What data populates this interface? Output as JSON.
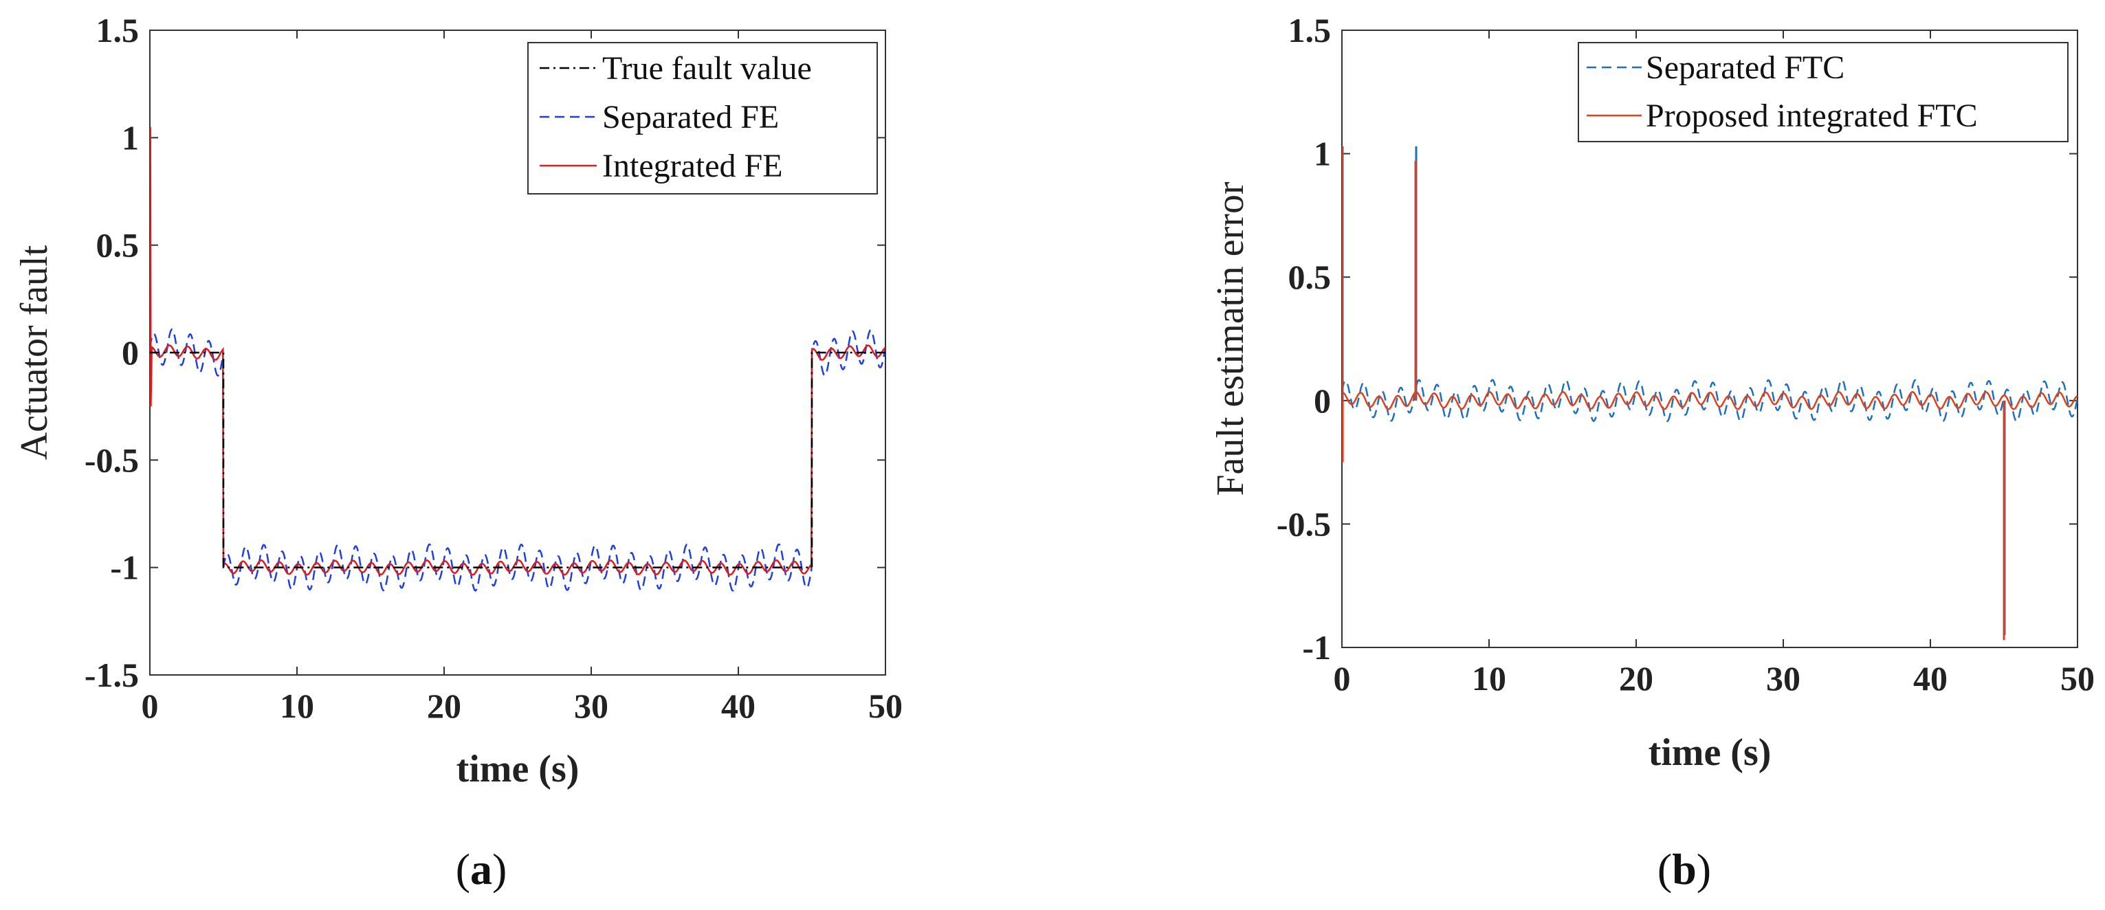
{
  "chart_data": [
    {
      "panel": "a",
      "type": "line",
      "xlabel": "time (s)",
      "ylabel": "Actuator fault",
      "xlim": [
        0,
        50
      ],
      "ylim": [
        -1.5,
        1.5
      ],
      "xticks": [
        0,
        10,
        20,
        30,
        40,
        50
      ],
      "yticks": [
        -1.5,
        -1,
        -0.5,
        0,
        0.5,
        1,
        1.5
      ],
      "xtick_labels": [
        "0",
        "10",
        "20",
        "30",
        "40",
        "50"
      ],
      "ytick_labels": [
        "-1.5",
        "-1",
        "-0.5",
        "0",
        "0.5",
        "1",
        "1.5"
      ],
      "legend_position": "top-right",
      "series": [
        {
          "name": "True fault value",
          "color": "#000000",
          "style": "dashdot",
          "x": [
            0,
            5,
            5,
            45,
            45,
            50
          ],
          "y": [
            0,
            0,
            -1,
            -1,
            0,
            0
          ]
        },
        {
          "name": "Separated FE",
          "color": "#1f3fe0",
          "style": "dashed",
          "description": "true fault plus oscillation of amplitude ~0.08, initial spike to 1.05 at t=0",
          "spike": {
            "x": 0,
            "y": 1.05
          },
          "oscillation_amplitude": 0.08
        },
        {
          "name": "Integrated FE",
          "color": "#e01b1b",
          "style": "solid",
          "description": "true fault plus oscillation of amplitude ~0.025, initial spike to 1.05 and -0.25 at t=0",
          "spike": {
            "x": 0,
            "y": 1.05,
            "y_min": -0.25
          },
          "oscillation_amplitude": 0.025
        }
      ]
    },
    {
      "panel": "b",
      "type": "line",
      "xlabel": "time (s)",
      "ylabel": "Fault estimatin error",
      "xlim": [
        0,
        50
      ],
      "ylim": [
        -1,
        1.5
      ],
      "xticks": [
        0,
        10,
        20,
        30,
        40,
        50
      ],
      "yticks": [
        -1,
        -0.5,
        0,
        0.5,
        1,
        1.5
      ],
      "xtick_labels": [
        "0",
        "10",
        "20",
        "30",
        "40",
        "50"
      ],
      "ytick_labels": [
        "-1",
        "-0.5",
        "0",
        "0.5",
        "1",
        "1.5"
      ],
      "legend_position": "top-right",
      "series": [
        {
          "name": "Separated FTC",
          "color": "#1f6fc0",
          "style": "dashed",
          "description": "oscillation amplitude ~0.06 around 0, spikes 1.03 at t=0, 1.03 at t=5",
          "spikes": [
            {
              "x": 0,
              "y": 1.03
            },
            {
              "x": 5,
              "y": 1.03
            },
            {
              "x": 45,
              "y": -0.95
            }
          ],
          "oscillation_amplitude": 0.06
        },
        {
          "name": "Proposed integrated FTC",
          "color": "#e0401a",
          "style": "solid",
          "description": "oscillation amplitude ~0.025 around 0, spikes 1.03/-0.25 at t=0, 0.97 at t=5, -0.97 at t=45",
          "spikes": [
            {
              "x": 0,
              "y": 1.03
            },
            {
              "x": 0.05,
              "y": -0.25
            },
            {
              "x": 5,
              "y": 0.97
            },
            {
              "x": 45,
              "y": -0.97
            }
          ],
          "oscillation_amplitude": 0.025
        }
      ]
    }
  ],
  "panel_labels": {
    "a": "a",
    "b": "b"
  }
}
